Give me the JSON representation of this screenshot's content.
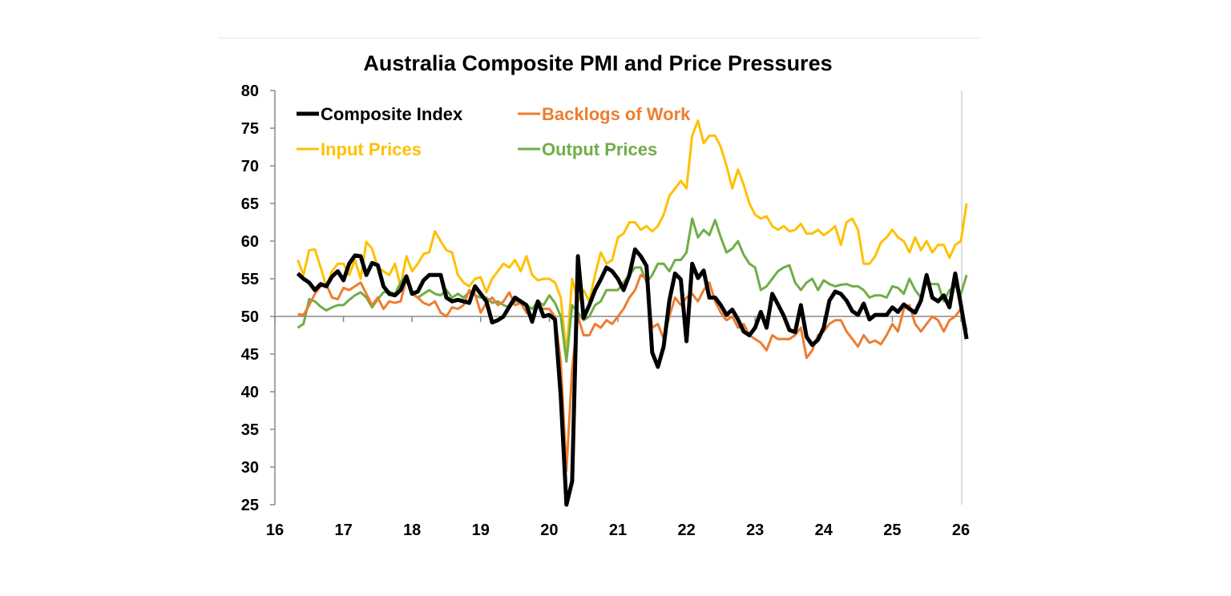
{
  "chart_data": {
    "type": "line",
    "title": "Australia Composite PMI and Price Pressures",
    "xlabel": "",
    "ylabel": "",
    "x_start": "2016-05",
    "frequency": "monthly",
    "x_tick_labels": [
      "16",
      "17",
      "18",
      "19",
      "20",
      "21",
      "22",
      "23",
      "24",
      "25",
      "26"
    ],
    "y_tick_labels": [
      "25",
      "30",
      "35",
      "40",
      "45",
      "50",
      "55",
      "60",
      "65",
      "70",
      "75",
      "80"
    ],
    "ylim": [
      25,
      80
    ],
    "xlim": [
      2016,
      2026.1
    ],
    "x_axis_crosses_at": 50,
    "grid": false,
    "legend": "top-left",
    "series": [
      {
        "name": "Composite Index",
        "color": "#000000",
        "values": [
          55.7,
          55.0,
          54.5,
          53.5,
          54.3,
          54.0,
          55.3,
          56.0,
          54.8,
          57.0,
          58.1,
          58.0,
          55.5,
          57.1,
          56.8,
          54.0,
          53.0,
          52.8,
          53.5,
          55.3,
          53.0,
          53.3,
          54.8,
          55.5,
          55.5,
          55.5,
          52.5,
          52.0,
          52.2,
          52.0,
          51.8,
          54.0,
          53.0,
          52.0,
          49.2,
          49.5,
          50.0,
          51.3,
          52.5,
          52.0,
          51.5,
          49.3,
          52.0,
          50.0,
          50.2,
          49.6,
          39.4,
          21.7,
          28.1,
          58.0,
          49.8,
          51.5,
          53.5,
          54.9,
          56.5,
          56.0,
          55.0,
          53.5,
          55.5,
          58.9,
          58.0,
          56.7,
          45.2,
          43.3,
          46.0,
          52.1,
          55.7,
          54.9,
          46.7,
          57.0,
          55.1,
          56.1,
          52.5,
          52.5,
          51.5,
          50.2,
          50.9,
          49.6,
          48.0,
          47.5,
          48.5,
          50.6,
          48.5,
          53.0,
          51.6,
          50.1,
          48.2,
          47.9,
          51.5,
          47.3,
          46.2,
          46.9,
          48.5,
          52.1,
          53.3,
          53.0,
          52.1,
          50.7,
          50.2,
          51.7,
          49.6,
          50.2,
          50.2,
          50.2,
          51.2,
          50.6,
          51.6,
          51.0,
          50.5,
          52.1,
          55.5,
          52.5,
          52.0,
          52.8,
          51.2,
          55.7,
          51.5,
          47.0
        ]
      },
      {
        "name": "Backlogs of Work",
        "color": "#ED7D31",
        "values": [
          50.3,
          50.2,
          51.5,
          53.0,
          54.0,
          54.3,
          52.5,
          52.3,
          53.8,
          53.5,
          54.0,
          54.5,
          53.0,
          51.5,
          52.5,
          51.0,
          52.0,
          51.8,
          52.0,
          55.0,
          53.0,
          52.5,
          51.8,
          51.5,
          52.0,
          50.5,
          50.0,
          51.2,
          51.0,
          51.5,
          53.5,
          53.0,
          50.5,
          51.8,
          52.5,
          51.5,
          52.0,
          53.2,
          51.5,
          51.8,
          50.5,
          50.0,
          51.3,
          51.0,
          51.0,
          50.0,
          44.0,
          29.5,
          43.0,
          50.0,
          47.5,
          47.5,
          49.0,
          48.5,
          49.5,
          49.0,
          50.0,
          51.0,
          52.5,
          53.5,
          55.5,
          55.0,
          48.5,
          49.0,
          47.0,
          50.0,
          52.5,
          51.5,
          52.5,
          53.0,
          52.0,
          53.5,
          54.5,
          52.0,
          50.5,
          49.5,
          50.0,
          48.5,
          49.0,
          47.5,
          47.0,
          46.5,
          45.5,
          47.5,
          47.0,
          47.0,
          47.0,
          47.5,
          48.5,
          44.5,
          45.5,
          47.5,
          48.0,
          49.0,
          49.5,
          49.5,
          48.0,
          47.0,
          46.0,
          47.5,
          46.5,
          46.8,
          46.3,
          47.5,
          49.0,
          48.0,
          51.0,
          51.5,
          49.0,
          48.0,
          49.0,
          50.0,
          49.5,
          48.0,
          49.5,
          50.0,
          51.0,
          48.2
        ]
      },
      {
        "name": "Input Prices",
        "color": "#FFC000",
        "values": [
          57.5,
          55.5,
          58.8,
          58.9,
          56.5,
          54.0,
          56.0,
          57.0,
          57.0,
          55.5,
          57.5,
          55.0,
          59.9,
          59.0,
          56.5,
          56.0,
          55.5,
          57.0,
          54.0,
          58.0,
          56.0,
          57.0,
          58.3,
          58.5,
          61.3,
          60.0,
          58.8,
          58.5,
          55.5,
          54.5,
          54.0,
          55.0,
          55.2,
          53.2,
          55.0,
          56.0,
          57.0,
          56.5,
          57.5,
          56.0,
          58.0,
          55.5,
          54.8,
          55.0,
          55.0,
          54.5,
          52.5,
          45.0,
          55.0,
          52.0,
          53.5,
          52.0,
          55.5,
          58.5,
          57.0,
          57.5,
          60.5,
          61.0,
          62.5,
          62.5,
          61.5,
          62.0,
          61.3,
          62.0,
          63.5,
          66.0,
          67.0,
          68.0,
          67.0,
          74.0,
          76.0,
          73.0,
          74.0,
          74.0,
          72.5,
          70.0,
          67.0,
          69.5,
          67.5,
          65.0,
          63.5,
          63.0,
          63.3,
          62.0,
          61.5,
          62.0,
          61.3,
          61.5,
          62.3,
          61.0,
          61.0,
          61.5,
          60.8,
          61.3,
          62.0,
          59.5,
          62.5,
          63.0,
          61.5,
          57.0,
          57.0,
          58.0,
          59.8,
          60.5,
          61.5,
          60.5,
          60.0,
          58.5,
          60.5,
          58.8,
          60.0,
          58.5,
          59.5,
          59.5,
          57.8,
          59.5,
          60.0,
          65.0
        ]
      },
      {
        "name": "Output Prices",
        "color": "#70AD47",
        "values": [
          48.5,
          49.0,
          52.3,
          52.0,
          51.3,
          50.8,
          51.2,
          51.5,
          51.5,
          52.2,
          52.8,
          53.2,
          52.5,
          51.2,
          52.3,
          53.2,
          53.3,
          53.0,
          54.5,
          55.5,
          53.0,
          52.5,
          53.0,
          53.5,
          53.0,
          52.8,
          53.5,
          52.5,
          53.0,
          52.5,
          53.2,
          52.8,
          52.5,
          52.5,
          51.8,
          52.0,
          51.5,
          51.2,
          52.0,
          52.0,
          51.5,
          51.0,
          52.0,
          51.5,
          52.8,
          51.8,
          50.0,
          44.0,
          51.5,
          50.5,
          49.5,
          50.0,
          51.5,
          52.0,
          53.5,
          53.5,
          53.5,
          54.5,
          55.5,
          56.5,
          56.5,
          54.5,
          55.5,
          57.0,
          57.0,
          56.0,
          57.5,
          57.5,
          58.5,
          63.0,
          60.5,
          61.5,
          60.8,
          62.8,
          60.5,
          58.5,
          59.0,
          60.0,
          58.2,
          57.0,
          56.5,
          53.5,
          54.0,
          55.0,
          56.0,
          56.5,
          56.8,
          54.5,
          53.5,
          54.5,
          55.0,
          53.5,
          54.8,
          54.3,
          54.0,
          54.2,
          54.3,
          54.0,
          54.0,
          53.5,
          52.5,
          52.8,
          52.8,
          52.5,
          54.0,
          53.8,
          53.0,
          55.0,
          53.5,
          52.5,
          54.5,
          54.3,
          54.3,
          52.0,
          53.5,
          54.0,
          53.0,
          55.5
        ]
      }
    ]
  }
}
